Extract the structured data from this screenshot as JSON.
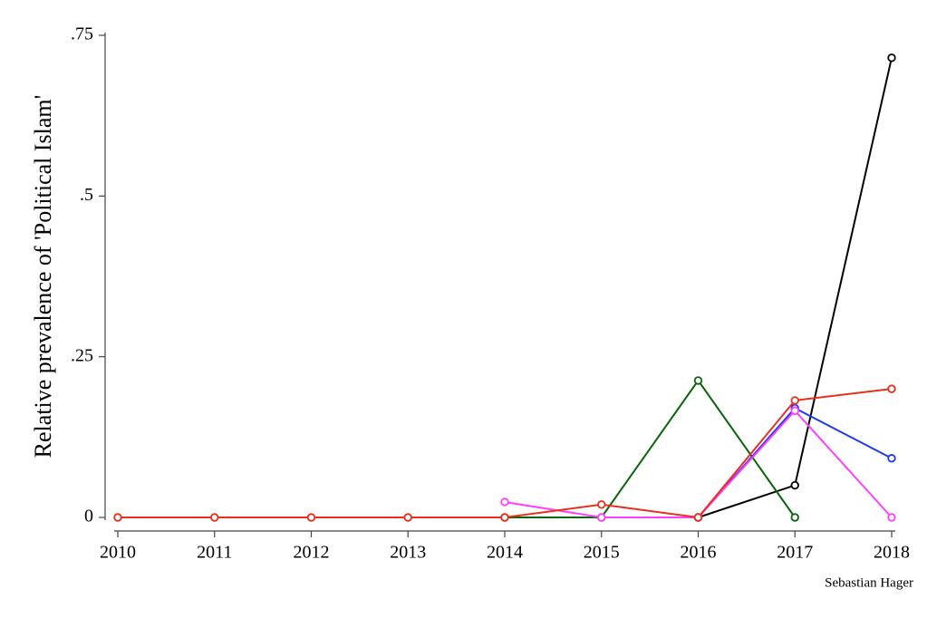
{
  "chart_data": {
    "type": "line",
    "y_label": "Relative prevalence of 'Political Islam'",
    "annotation": "Sebastian Hager",
    "x": [
      2010,
      2011,
      2012,
      2013,
      2014,
      2015,
      2016,
      2017,
      2018
    ],
    "xlim": [
      2010,
      2018
    ],
    "xticks": [
      2010,
      2011,
      2012,
      2013,
      2014,
      2015,
      2016,
      2017,
      2018
    ],
    "ylim": [
      0,
      0.75
    ],
    "yticks": [
      0,
      {
        "value": 0.25,
        "label": ".25"
      },
      {
        "value": 0.5,
        "label": ".5"
      },
      {
        "value": 0.75,
        "label": ".75"
      }
    ],
    "series": [
      {
        "color": "#000000",
        "values": [
          null,
          null,
          null,
          null,
          null,
          null,
          0,
          0.05,
          0.715
        ]
      },
      {
        "color": "#0a640a",
        "values": [
          null,
          null,
          null,
          null,
          0,
          0,
          0.213,
          0,
          null
        ]
      },
      {
        "color": "#1e3ce6",
        "values": [
          null,
          null,
          null,
          null,
          null,
          null,
          0,
          0.17,
          0.092
        ]
      },
      {
        "color": "#ff40ff",
        "values": [
          null,
          null,
          null,
          null,
          0.024,
          0,
          0,
          0.166,
          0
        ]
      },
      {
        "color": "#e8301c",
        "values": [
          0,
          0,
          0,
          0,
          0,
          0.02,
          0,
          0.182,
          0.2
        ]
      }
    ]
  }
}
